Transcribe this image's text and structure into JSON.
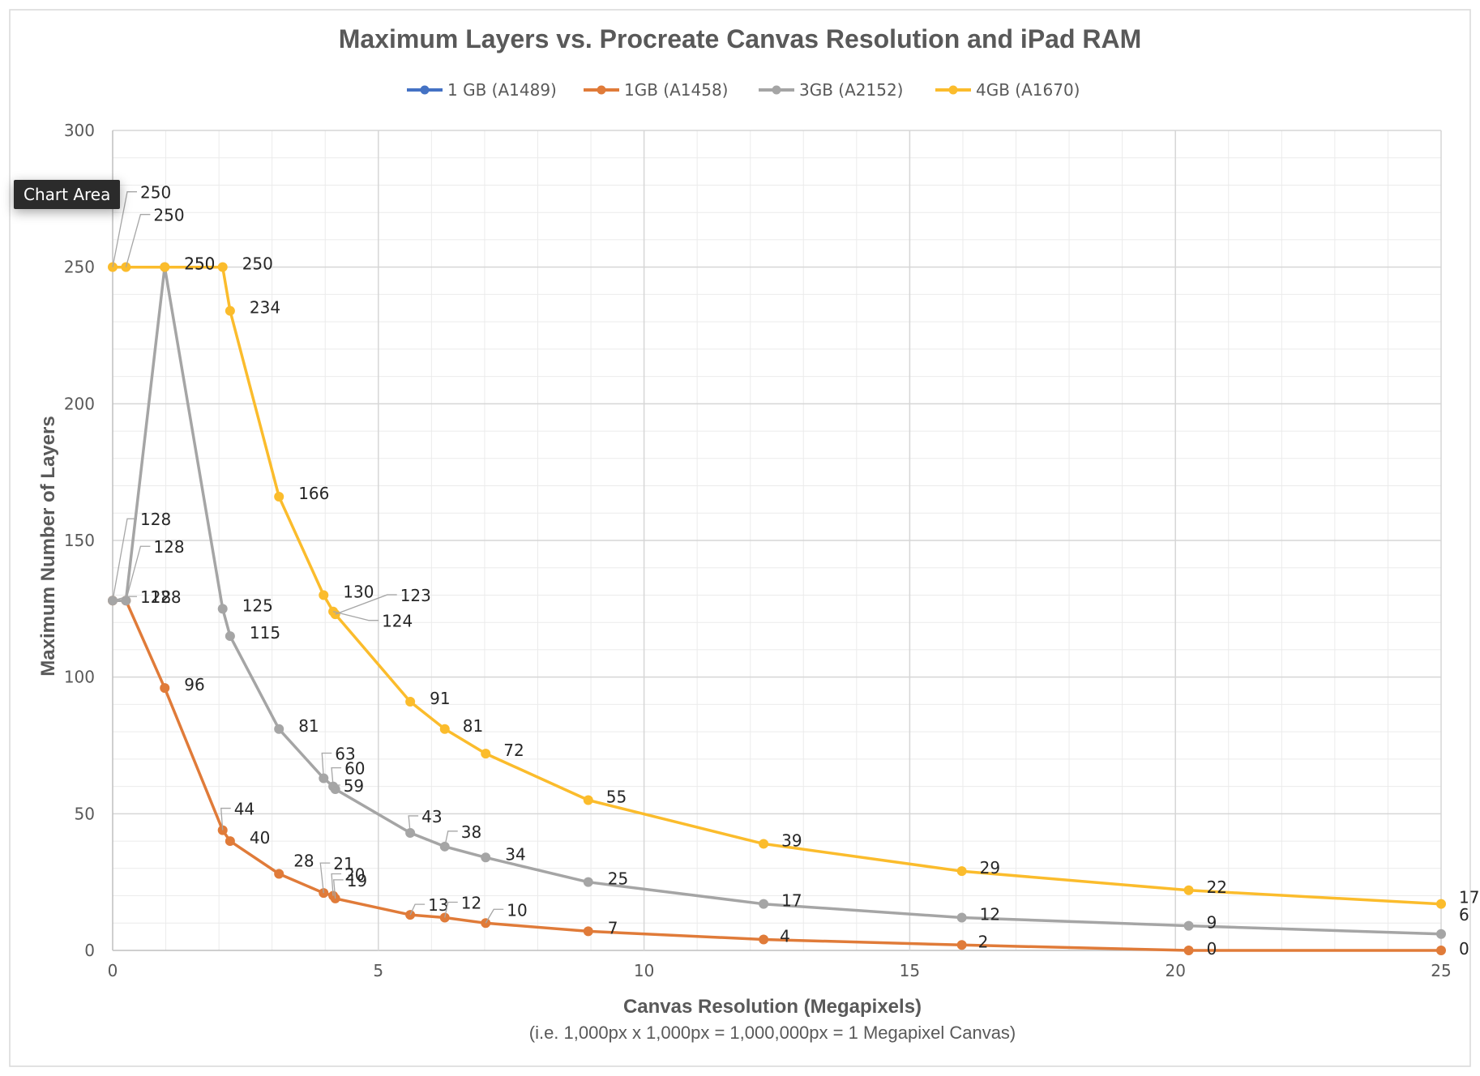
{
  "tooltip": "Chart Area",
  "chart_data": {
    "type": "line",
    "title": "Maximum Layers  vs. Procreate Canvas Resolution and iPad RAM",
    "xlabel": "Canvas Resolution (Megapixels)",
    "xlabel_sub": "(i.e. 1,000px x 1,000px  = 1,000,000px = 1 Megapixel Canvas)",
    "ylabel": "Maximum Number of Layers",
    "xlim": [
      0,
      25
    ],
    "ylim": [
      0,
      300
    ],
    "x_ticks": [
      0,
      5,
      10,
      15,
      20,
      25
    ],
    "y_ticks": [
      0,
      50,
      100,
      150,
      200,
      250,
      300
    ],
    "x_minor_step": 1,
    "y_minor_step": 10,
    "grid": true,
    "legend_position": "top",
    "series": [
      {
        "name": "1 GB (A1489)",
        "color": "#4472C4",
        "points": []
      },
      {
        "name": "1GB (A1458)",
        "color": "#E07B39",
        "points": [
          [
            0,
            128
          ],
          [
            0.25,
            128
          ],
          [
            0.98,
            96
          ],
          [
            2.07,
            44
          ],
          [
            2.21,
            40
          ],
          [
            3.13,
            28
          ],
          [
            3.97,
            21
          ],
          [
            4.15,
            20
          ],
          [
            4.19,
            19
          ],
          [
            5.6,
            13
          ],
          [
            6.25,
            12
          ],
          [
            7.02,
            10
          ],
          [
            8.95,
            7
          ],
          [
            12.25,
            4
          ],
          [
            15.98,
            2
          ],
          [
            20.25,
            0
          ],
          [
            25,
            0
          ]
        ],
        "labels": [
          "128",
          "128",
          "96",
          "44",
          "40",
          "28",
          "21",
          "20",
          "19",
          "13",
          "12",
          "10",
          "7",
          "4",
          "2",
          "0",
          "0"
        ]
      },
      {
        "name": "3GB (A2152)",
        "color": "#A5A5A5",
        "points": [
          [
            0,
            128
          ],
          [
            0.25,
            128
          ],
          [
            0.98,
            250
          ],
          [
            2.07,
            125
          ],
          [
            2.21,
            115
          ],
          [
            3.13,
            81
          ],
          [
            3.97,
            63
          ],
          [
            4.15,
            60
          ],
          [
            4.19,
            59
          ],
          [
            5.6,
            43
          ],
          [
            6.25,
            38
          ],
          [
            7.02,
            34
          ],
          [
            8.95,
            25
          ],
          [
            12.25,
            17
          ],
          [
            15.98,
            12
          ],
          [
            20.25,
            9
          ],
          [
            25,
            6
          ]
        ],
        "labels": [
          "128",
          "128",
          "250",
          "125",
          "115",
          "81",
          "63",
          "60",
          "59",
          "43",
          "38",
          "34",
          "25",
          "17",
          "12",
          "9",
          "6"
        ]
      },
      {
        "name": "4GB (A1670)",
        "color": "#FBBC2C",
        "points": [
          [
            0,
            250
          ],
          [
            0.25,
            250
          ],
          [
            0.98,
            250
          ],
          [
            2.07,
            250
          ],
          [
            2.21,
            234
          ],
          [
            3.13,
            166
          ],
          [
            3.97,
            130
          ],
          [
            4.15,
            124
          ],
          [
            4.19,
            123
          ],
          [
            5.6,
            91
          ],
          [
            6.25,
            81
          ],
          [
            7.02,
            72
          ],
          [
            8.95,
            55
          ],
          [
            12.25,
            39
          ],
          [
            15.98,
            29
          ],
          [
            20.25,
            22
          ],
          [
            25,
            17
          ]
        ],
        "labels": [
          "250",
          "250",
          "250",
          "250",
          "234",
          "166",
          "130",
          "124",
          "123",
          "91",
          "81",
          "72",
          "55",
          "39",
          "29",
          "22",
          "17"
        ]
      }
    ]
  }
}
